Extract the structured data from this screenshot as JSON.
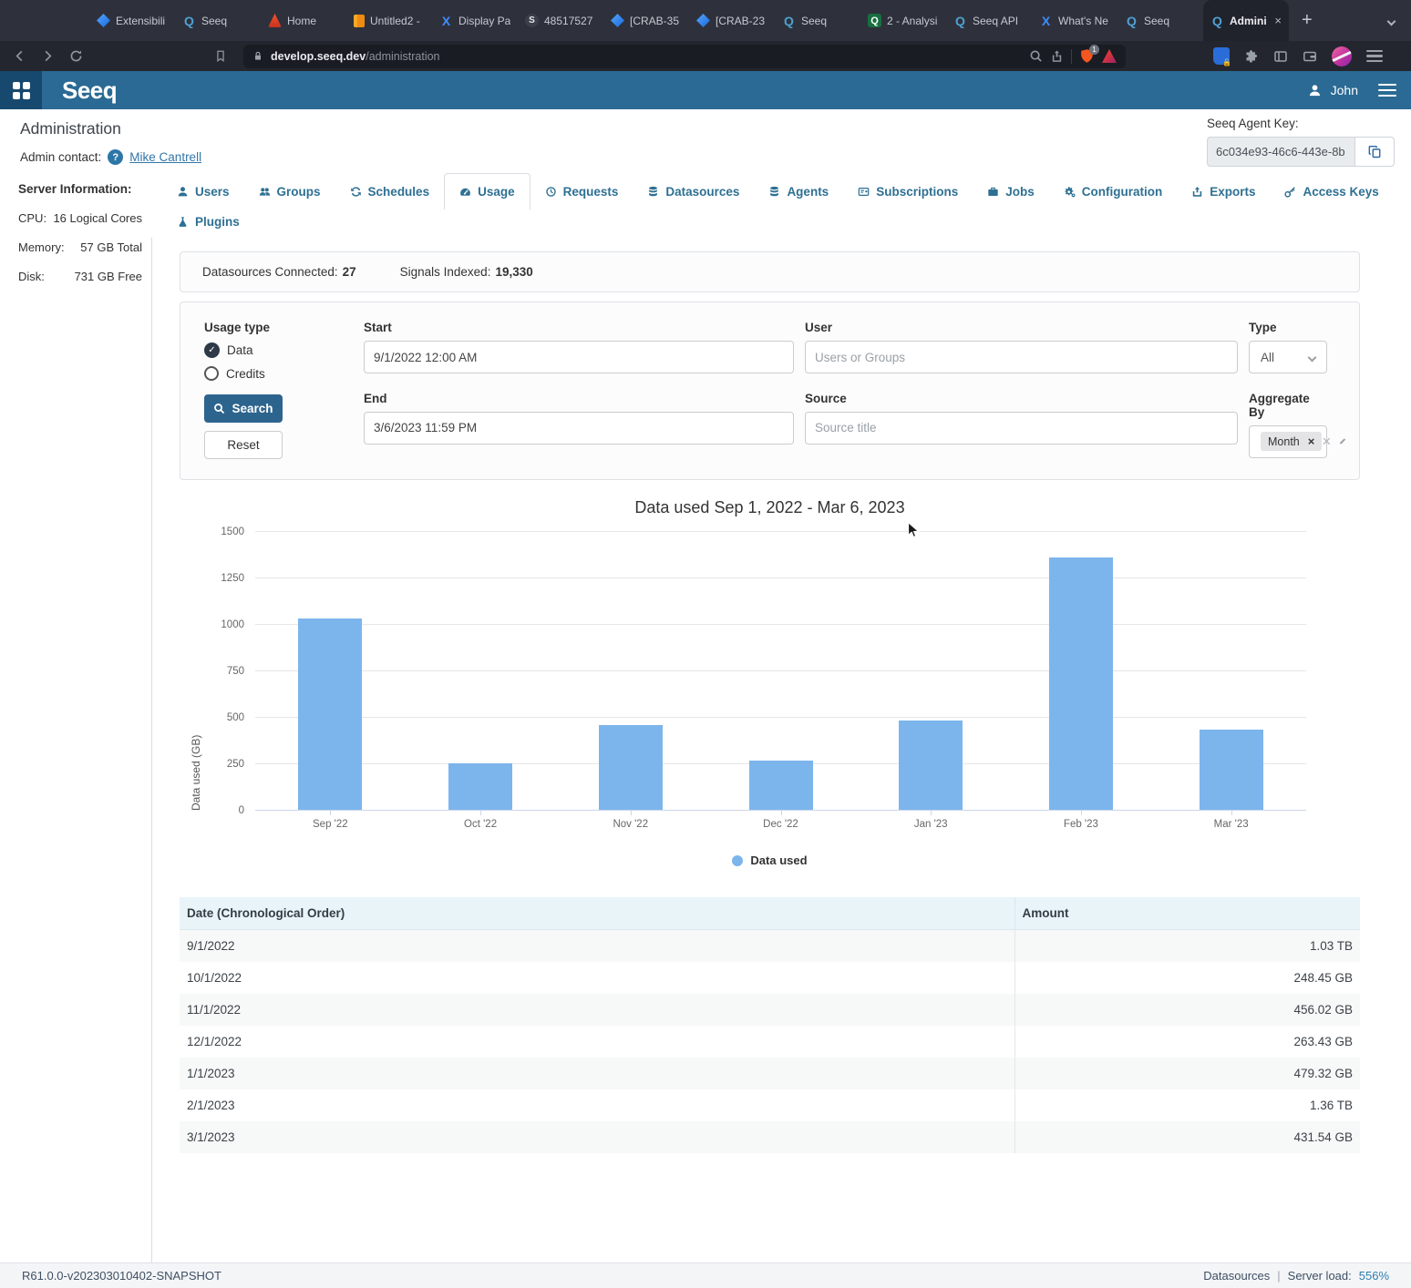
{
  "browser": {
    "tabs": [
      {
        "label": "Extensibili",
        "icon": "jira-icon"
      },
      {
        "label": "Seeq",
        "icon": "seeq-icon"
      },
      {
        "label": "Home",
        "icon": "flame-icon"
      },
      {
        "label": "Untitled2 -",
        "icon": "notebook-icon"
      },
      {
        "label": "Display Pa",
        "icon": "x-app-icon"
      },
      {
        "label": "48517527",
        "icon": "globe-icon"
      },
      {
        "label": "[CRAB-35",
        "icon": "jira-icon"
      },
      {
        "label": "[CRAB-23",
        "icon": "jira-icon"
      },
      {
        "label": "Seeq",
        "icon": "seeq-icon"
      },
      {
        "label": "2 - Analysi",
        "icon": "seeq-green-icon"
      },
      {
        "label": "Seeq API",
        "icon": "seeq-icon"
      },
      {
        "label": "What's Ne",
        "icon": "x-app-icon"
      },
      {
        "label": "Seeq",
        "icon": "seeq-icon"
      },
      {
        "label": "Admini",
        "icon": "seeq-icon",
        "active": true
      }
    ],
    "url_host": "develop.seeq.dev",
    "url_path": "/administration",
    "shield_badge": "1"
  },
  "header": {
    "logo": "Seeq",
    "user": "John"
  },
  "page": {
    "title": "Administration",
    "admin_contact_label": "Admin contact:",
    "admin_contact_name": "Mike Cantrell",
    "agent_key_label": "Seeq Agent Key:",
    "agent_key_value": "6c034e93-46c6-443e-8b",
    "server_info": {
      "title": "Server Information:",
      "rows": [
        {
          "label": "CPU:",
          "value": "16 Logical Cores"
        },
        {
          "label": "Memory:",
          "value": "57 GB Total"
        },
        {
          "label": "Disk:",
          "value": "731 GB Free"
        }
      ]
    }
  },
  "nav": {
    "active": "Usage",
    "tabs": [
      {
        "label": "Users",
        "icon": "user-icon"
      },
      {
        "label": "Groups",
        "icon": "users-icon"
      },
      {
        "label": "Schedules",
        "icon": "sync-icon"
      },
      {
        "label": "Usage",
        "icon": "gauge-icon",
        "active": true
      },
      {
        "label": "Requests",
        "icon": "history-icon"
      },
      {
        "label": "Datasources",
        "icon": "database-icon"
      },
      {
        "label": "Agents",
        "icon": "database-icon"
      },
      {
        "label": "Subscriptions",
        "icon": "subscription-card-icon"
      },
      {
        "label": "Jobs",
        "icon": "briefcase-icon"
      },
      {
        "label": "Configuration",
        "icon": "gears-icon"
      },
      {
        "label": "Exports",
        "icon": "export-icon"
      },
      {
        "label": "Access Keys",
        "icon": "key-icon"
      }
    ],
    "second_row": [
      {
        "label": "Plugins",
        "icon": "flask-icon"
      }
    ]
  },
  "stats": {
    "datasources_label": "Datasources Connected:",
    "datasources_value": "27",
    "signals_label": "Signals Indexed:",
    "signals_value": "19,330"
  },
  "filters": {
    "start": {
      "label": "Start",
      "value": "9/1/2022 12:00 AM"
    },
    "end": {
      "label": "End",
      "value": "3/6/2023 11:59 PM"
    },
    "user": {
      "label": "User",
      "placeholder": "Users or Groups"
    },
    "source": {
      "label": "Source",
      "placeholder": "Source title"
    },
    "type": {
      "label": "Type",
      "value": "All"
    },
    "aggregate": {
      "label": "Aggregate By",
      "selected": [
        "Month"
      ]
    },
    "usage_type": {
      "label": "Usage type",
      "options": [
        "Data",
        "Credits"
      ],
      "selected": "Data"
    },
    "search_label": "Search",
    "reset_label": "Reset"
  },
  "chart_data": {
    "type": "bar",
    "title": "Data used Sep 1, 2022 - Mar 6, 2023",
    "categories": [
      "Sep '22",
      "Oct '22",
      "Nov '22",
      "Dec '22",
      "Jan '23",
      "Feb '23",
      "Mar '23"
    ],
    "values": [
      1030,
      248.45,
      456.02,
      263.43,
      479.32,
      1360,
      431.54
    ],
    "xlabel": "",
    "ylabel": "Data used (GB)",
    "ylim": [
      0,
      1500
    ],
    "yticks": [
      0,
      250,
      500,
      750,
      1000,
      1250,
      1500
    ],
    "legend": [
      "Data used"
    ],
    "legend_position": "bottom",
    "grid": true,
    "bar_color": "#7cb5ec"
  },
  "table": {
    "headers": [
      "Date (Chronological Order)",
      "Amount"
    ],
    "rows": [
      [
        "9/1/2022",
        "1.03 TB"
      ],
      [
        "10/1/2022",
        "248.45 GB"
      ],
      [
        "11/1/2022",
        "456.02 GB"
      ],
      [
        "12/1/2022",
        "263.43 GB"
      ],
      [
        "1/1/2023",
        "479.32 GB"
      ],
      [
        "2/1/2023",
        "1.36 TB"
      ],
      [
        "3/1/2023",
        "431.54 GB"
      ]
    ]
  },
  "footer": {
    "version": "R61.0.0-v202303010402-SNAPSHOT",
    "datasources_label": "Datasources",
    "separator": "|",
    "server_load_label": "Server load:",
    "server_load_value": "556%"
  },
  "colors": {
    "accent_blue": "#2e7093",
    "header_blue": "#2a6a94",
    "search_button": "#2d648e",
    "bar_color": "#7cb5ec",
    "table_header_bg": "#e9f4f9"
  }
}
